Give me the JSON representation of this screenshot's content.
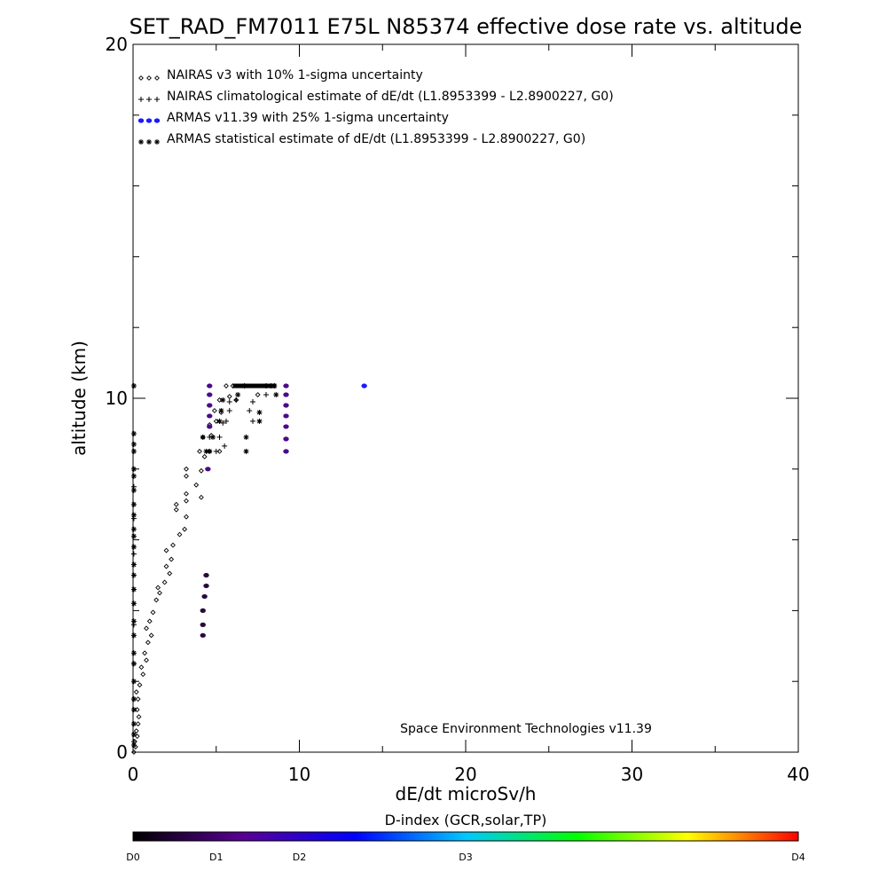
{
  "chart_data": {
    "type": "scatter",
    "title": "SET_RAD_FM7011  E75L N85374 effective dose rate vs. altitude",
    "xlabel": "dE/dt microSv/h",
    "ylabel": "altitude (km)",
    "xlim": [
      0,
      40
    ],
    "ylim": [
      0,
      20
    ],
    "x_ticks": [
      0,
      10,
      20,
      30,
      40
    ],
    "y_ticks": [
      0,
      10,
      20
    ],
    "x_minor_step": 5,
    "y_minor_step": 2,
    "grid": false,
    "legend_position": "top-left",
    "credit": "Space Environment Technologies v11.39",
    "colorbar": {
      "title": "D-index (GCR,solar,TP)",
      "labels": [
        "D0",
        "D1",
        "D2",
        "D3",
        "D4"
      ],
      "label_positions": [
        0,
        0.125,
        0.25,
        0.5,
        1.0
      ],
      "colors": [
        "#000000",
        "#5a0096",
        "#0000ff",
        "#00c8ff",
        "#00ff00",
        "#ffff00",
        "#ff0000"
      ]
    },
    "series": [
      {
        "name": "NAIRAS v3 with 10% 1-sigma uncertainty",
        "marker": "diamond",
        "color": "#000000",
        "points": [
          [
            0.05,
            0.0
          ],
          [
            0.15,
            0.15
          ],
          [
            0.1,
            0.3
          ],
          [
            0.25,
            0.45
          ],
          [
            0.2,
            0.6
          ],
          [
            0.3,
            0.8
          ],
          [
            0.35,
            1.0
          ],
          [
            0.25,
            1.2
          ],
          [
            0.3,
            1.5
          ],
          [
            0.2,
            1.7
          ],
          [
            0.4,
            1.9
          ],
          [
            0.6,
            2.2
          ],
          [
            0.5,
            2.4
          ],
          [
            0.8,
            2.6
          ],
          [
            0.7,
            2.8
          ],
          [
            0.9,
            3.1
          ],
          [
            1.1,
            3.3
          ],
          [
            0.8,
            3.5
          ],
          [
            1.0,
            3.7
          ],
          [
            1.2,
            3.95
          ],
          [
            1.4,
            4.3
          ],
          [
            1.6,
            4.5
          ],
          [
            1.5,
            4.65
          ],
          [
            1.9,
            4.8
          ],
          [
            2.2,
            5.05
          ],
          [
            2.0,
            5.25
          ],
          [
            2.3,
            5.45
          ],
          [
            2.0,
            5.7
          ],
          [
            2.4,
            5.85
          ],
          [
            2.8,
            6.15
          ],
          [
            3.1,
            6.3
          ],
          [
            3.2,
            6.65
          ],
          [
            2.6,
            6.85
          ],
          [
            2.6,
            7.0
          ],
          [
            3.2,
            7.1
          ],
          [
            3.2,
            7.3
          ],
          [
            4.1,
            7.2
          ],
          [
            3.8,
            7.55
          ],
          [
            3.2,
            7.8
          ],
          [
            4.1,
            7.95
          ],
          [
            3.2,
            8.0
          ],
          [
            4.3,
            8.35
          ],
          [
            4.0,
            8.5
          ],
          [
            4.6,
            8.5
          ],
          [
            5.2,
            8.5
          ],
          [
            4.2,
            8.9
          ],
          [
            4.7,
            8.95
          ],
          [
            4.6,
            9.25
          ],
          [
            5.0,
            9.35
          ],
          [
            5.3,
            9.6
          ],
          [
            4.9,
            9.65
          ],
          [
            5.2,
            9.95
          ],
          [
            5.8,
            10.05
          ],
          [
            5.6,
            10.35
          ],
          [
            6.0,
            10.35
          ],
          [
            7.5,
            10.1
          ],
          [
            6.2,
            9.95
          ]
        ]
      },
      {
        "name": "NAIRAS climatological estimate of dE/dt (L1.8953399 - L2.8900227, G0)",
        "marker": "plus",
        "color": "#000000",
        "points": [
          [
            0.05,
            0.3
          ],
          [
            0.05,
            1.5
          ],
          [
            0.05,
            2.5
          ],
          [
            0.05,
            3.6
          ],
          [
            0.05,
            4.6
          ],
          [
            0.05,
            5.6
          ],
          [
            0.05,
            6.6
          ],
          [
            0.05,
            7.5
          ],
          [
            4.6,
            8.9
          ],
          [
            5.0,
            8.5
          ],
          [
            5.2,
            8.9
          ],
          [
            5.5,
            8.65
          ],
          [
            5.4,
            9.3
          ],
          [
            5.6,
            9.35
          ],
          [
            5.8,
            9.65
          ],
          [
            5.8,
            9.9
          ],
          [
            6.2,
            9.95
          ],
          [
            7.0,
            9.65
          ],
          [
            7.2,
            9.35
          ],
          [
            7.2,
            9.9
          ],
          [
            8.0,
            10.1
          ],
          [
            8.3,
            10.35
          ],
          [
            8.0,
            10.35
          ]
        ]
      },
      {
        "name": "ARMAS v11.39 with 25% 1-sigma uncertainty",
        "marker": "dot",
        "color": "#1a1aff",
        "points": [
          [
            13.9,
            10.35
          ],
          [
            9.2,
            10.35
          ],
          [
            9.2,
            10.1
          ],
          [
            9.2,
            9.8
          ],
          [
            9.2,
            9.5
          ],
          [
            9.2,
            9.2
          ],
          [
            9.2,
            8.85
          ],
          [
            9.2,
            8.5
          ],
          [
            4.6,
            10.35
          ],
          [
            4.6,
            10.1
          ],
          [
            4.6,
            9.8
          ],
          [
            4.6,
            9.5
          ],
          [
            4.6,
            9.2
          ],
          [
            4.5,
            8.0
          ],
          [
            4.4,
            5.0
          ],
          [
            4.4,
            4.7
          ],
          [
            4.3,
            4.4
          ],
          [
            4.2,
            4.0
          ],
          [
            4.2,
            3.6
          ],
          [
            4.2,
            3.3
          ]
        ]
      },
      {
        "name": "ARMAS statistical estimate of dE/dt (L1.8953399 - L2.8900227, G0)",
        "marker": "asterisk",
        "color": "#000000",
        "points": [
          [
            0.05,
            10.35
          ],
          [
            0.05,
            9.0
          ],
          [
            0.05,
            8.7
          ],
          [
            0.05,
            8.5
          ],
          [
            0.05,
            8.0
          ],
          [
            0.05,
            7.8
          ],
          [
            0.05,
            7.4
          ],
          [
            0.05,
            7.0
          ],
          [
            0.05,
            6.7
          ],
          [
            0.05,
            6.3
          ],
          [
            0.05,
            6.1
          ],
          [
            0.05,
            5.8
          ],
          [
            0.05,
            5.3
          ],
          [
            0.05,
            5.0
          ],
          [
            0.05,
            4.6
          ],
          [
            0.05,
            4.2
          ],
          [
            0.05,
            3.7
          ],
          [
            0.05,
            3.3
          ],
          [
            0.05,
            2.8
          ],
          [
            0.05,
            2.5
          ],
          [
            0.05,
            2.0
          ],
          [
            0.05,
            1.5
          ],
          [
            0.05,
            1.2
          ],
          [
            0.05,
            0.8
          ],
          [
            0.05,
            0.5
          ],
          [
            0.05,
            0.2
          ],
          [
            4.2,
            8.9
          ],
          [
            4.4,
            8.5
          ],
          [
            4.8,
            8.9
          ],
          [
            5.3,
            9.65
          ],
          [
            5.4,
            9.95
          ],
          [
            6.3,
            10.1
          ],
          [
            6.7,
            10.35
          ],
          [
            6.8,
            8.5
          ],
          [
            6.8,
            8.9
          ],
          [
            7.6,
            9.35
          ],
          [
            7.6,
            9.6
          ],
          [
            8.6,
            10.1
          ],
          [
            8.5,
            10.35
          ],
          [
            5.2,
            9.35
          ],
          [
            4.6,
            8.5
          ]
        ]
      }
    ],
    "dense_segment": {
      "x": [
        6.0,
        8.6
      ],
      "y": 10.35,
      "color": "#000000"
    }
  }
}
